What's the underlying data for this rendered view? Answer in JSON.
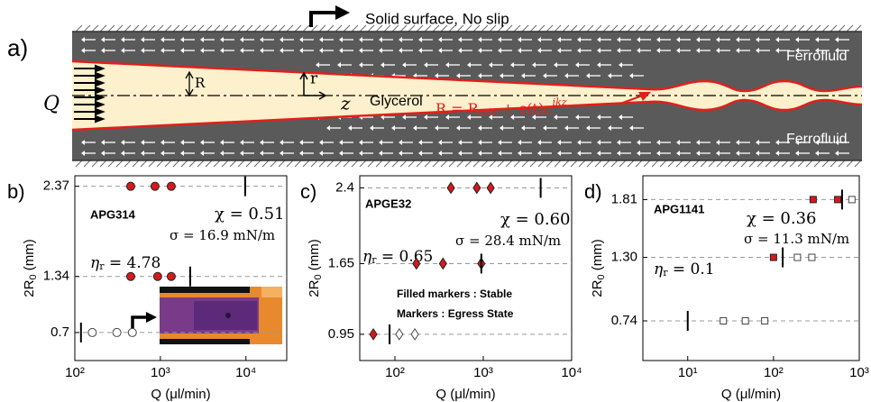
{
  "schematic": {
    "panel_label": "a)",
    "wall_label": "Solid surface, No slip",
    "flow_label": "Q",
    "radius_label": "R",
    "r_label": "r",
    "z_label": "z",
    "inner_fluid": "Glycerol",
    "outer_fluid_top": "Ferrofluid",
    "outer_fluid_bottom": "Ferrofluid",
    "equation": [
      "R = R",
      "min",
      " + ϵ(t)e",
      "ikz"
    ]
  },
  "chart_data": [
    {
      "type": "scatter",
      "panel_label": "b)",
      "sample": "APG314",
      "chi": "χ = 0.51",
      "sigma": "σ = 16.9 mN/m",
      "eta": [
        "η",
        "r",
        " = 4.78"
      ],
      "ylabel": [
        "2R",
        "0",
        " (mm)"
      ],
      "xlabel": "Q (μl/min)",
      "log_x": true,
      "grid": true,
      "xlim": [
        100,
        30000
      ],
      "ylim": [
        0.38,
        2.49
      ],
      "xticks": [
        {
          "value": 100,
          "label": "10²"
        },
        {
          "value": 1000,
          "label": "10³"
        },
        {
          "value": 10000,
          "label": "10⁴"
        }
      ],
      "yticks": [
        0.7,
        1.34,
        2.37
      ],
      "series": [
        {
          "marker": "circle",
          "filled": true,
          "color": "#d7191c",
          "x": [
            450,
            865,
            1340,
            450,
            930,
            1340
          ],
          "values": [
            2.37,
            2.37,
            2.37,
            1.34,
            1.34,
            1.34
          ]
        },
        {
          "marker": "circle",
          "filled": false,
          "color": "#ffffff",
          "x": [
            160,
            310,
            470
          ],
          "values": [
            0.7,
            0.7,
            0.7
          ]
        },
        {
          "marker": "vline",
          "color": "#000000",
          "x": [
            9800,
            2230,
            118
          ],
          "values": [
            2.37,
            1.34,
            0.7
          ]
        }
      ]
    },
    {
      "type": "scatter",
      "panel_label": "c)",
      "sample": "APGE32",
      "chi": "χ = 0.60",
      "sigma": "σ = 28.4 mN/m",
      "eta": [
        "η",
        "r",
        " = 0.65"
      ],
      "notes": [
        "Filled markers : Stable",
        "Markers : Egress State"
      ],
      "ylabel": [
        "2R",
        "0",
        " (mm)"
      ],
      "xlabel": "Q (μl/min)",
      "log_x": true,
      "grid": true,
      "xlim": [
        40,
        10000
      ],
      "ylim": [
        0.69,
        2.52
      ],
      "xticks": [
        {
          "value": 100,
          "label": "10²"
        },
        {
          "value": 1000,
          "label": "10³"
        },
        {
          "value": 10000,
          "label": "10⁴"
        }
      ],
      "yticks": [
        0.95,
        1.65,
        2.4
      ],
      "series": [
        {
          "marker": "diamond",
          "filled": true,
          "color": "#d7191c",
          "x": [
            430,
            845,
            1210,
            175,
            350,
            950,
            57
          ],
          "values": [
            2.4,
            2.4,
            2.4,
            1.65,
            1.65,
            1.65,
            0.95
          ]
        },
        {
          "marker": "diamond",
          "filled": false,
          "color": "#ffffff",
          "x": [
            112,
            168
          ],
          "values": [
            0.95,
            0.95
          ]
        },
        {
          "marker": "vline",
          "color": "#000000",
          "x": [
            4460,
            950,
            87
          ],
          "values": [
            2.4,
            1.65,
            0.95
          ]
        }
      ]
    },
    {
      "type": "scatter",
      "panel_label": "d)",
      "sample": "APG1141",
      "chi": "χ = 0.36",
      "sigma": "σ = 11.3 mN/m",
      "eta": [
        "η",
        "r",
        " = 0.1"
      ],
      "ylabel": [
        "2R",
        "0",
        " (mm)"
      ],
      "xlabel": "Q (μl/min)",
      "log_x": true,
      "grid": true,
      "xlim": [
        3,
        1000
      ],
      "ylim": [
        0.39,
        2.02
      ],
      "xticks": [
        {
          "value": 10,
          "label": "10¹"
        },
        {
          "value": 100,
          "label": "10²"
        },
        {
          "value": 1000,
          "label": "10³"
        }
      ],
      "yticks": [
        0.74,
        {
          "value": 1.3,
          "label": "1.30"
        },
        1.81
      ],
      "series": [
        {
          "marker": "square",
          "filled": true,
          "color": "#d7191c",
          "x": [
            290,
            560,
            100
          ],
          "values": [
            1.81,
            1.81,
            1.3
          ]
        },
        {
          "marker": "square",
          "filled": false,
          "color": "#ffffff",
          "x": [
            820,
            190,
            280,
            26,
            47,
            79
          ],
          "values": [
            1.81,
            1.3,
            1.3,
            0.74,
            0.74,
            0.74
          ]
        },
        {
          "marker": "vline",
          "color": "#000000",
          "x": [
            630,
            128,
            10
          ],
          "values": [
            1.81,
            1.3,
            0.74
          ]
        }
      ]
    }
  ]
}
